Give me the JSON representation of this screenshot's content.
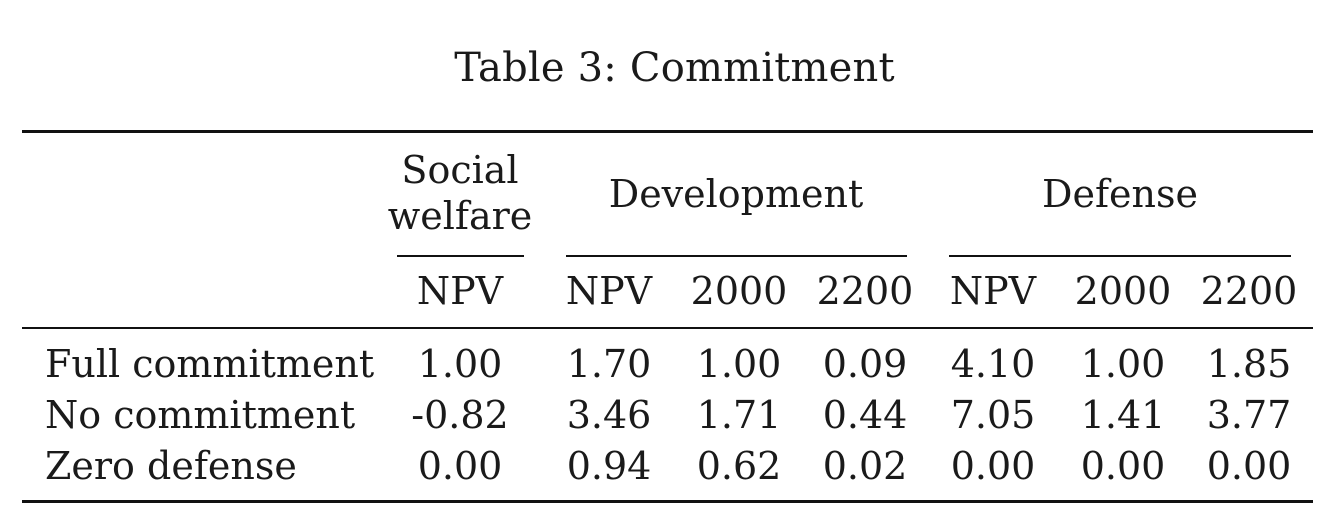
{
  "caption": "Table 3: Commitment",
  "header": {
    "social_welfare_line1": "Social",
    "social_welfare_line2": "welfare",
    "development": "Development",
    "defense": "Defense",
    "columns": [
      "NPV",
      "NPV",
      "2000",
      "2200",
      "NPV",
      "2000",
      "2200"
    ]
  },
  "rows": [
    {
      "label": "Full commitment",
      "values": [
        "1.00",
        "1.70",
        "1.00",
        "0.09",
        "4.10",
        "1.00",
        "1.85"
      ]
    },
    {
      "label": "No commitment",
      "values": [
        "-0.82",
        "3.46",
        "1.71",
        "0.44",
        "7.05",
        "1.41",
        "3.77"
      ]
    },
    {
      "label": "Zero defense",
      "values": [
        "0.00",
        "0.94",
        "0.62",
        "0.02",
        "0.00",
        "0.00",
        "0.00"
      ]
    }
  ]
}
